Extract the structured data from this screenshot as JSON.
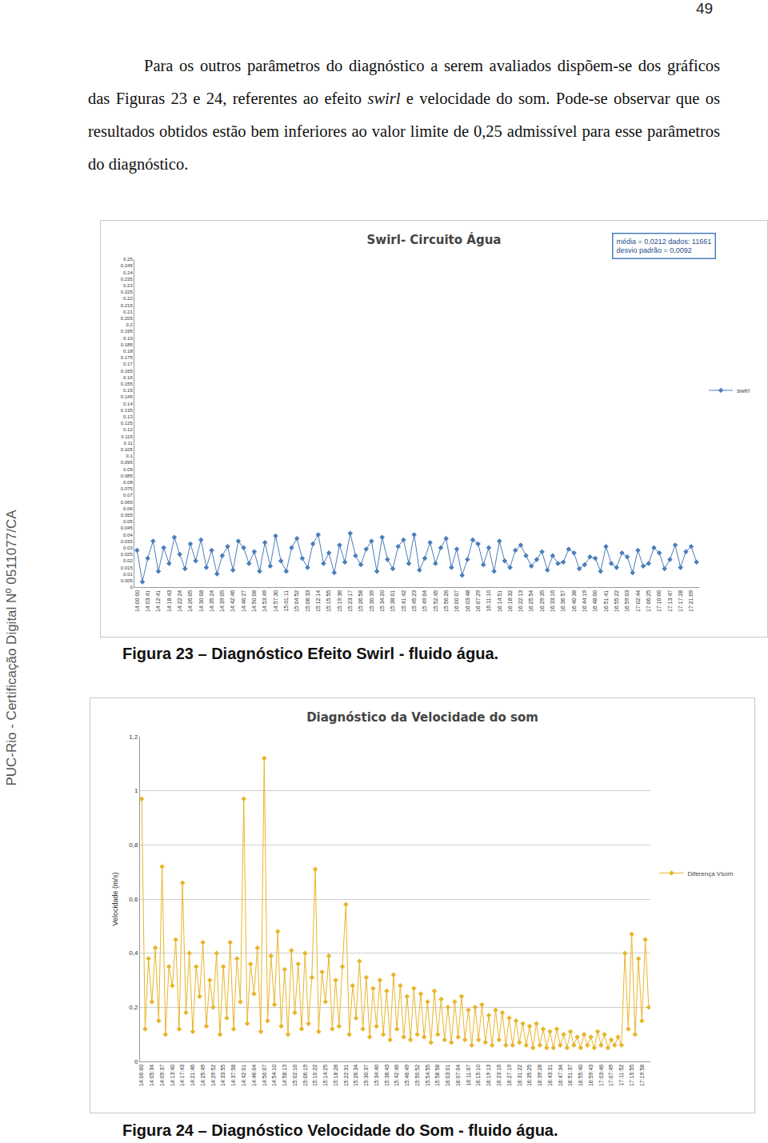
{
  "page_number": "49",
  "paragraph": [
    {
      "text": "Para os outros parâmetros do diagnóstico a serem avaliados dispõem-se dos gráficos das Figuras 23 e 24, referentes ao efeito "
    },
    {
      "text": "swirl",
      "style": "italic"
    },
    {
      "text": " e velocidade do som. Pode-se observar que os resultados obtidos estão bem inferiores ao valor limite de 0,25 admissível para esse parâmetros do diagnóstico."
    }
  ],
  "sidebar": "PUC-Rio - Certificação Digital Nº 0511077/CA",
  "chart_data": [
    {
      "type": "line",
      "title": "Swirl- Circuito Água",
      "caption": "Figura 23 – Diagnóstico Efeito Swirl - fluido água.",
      "annotations": [
        "média = 0,0212 dados: 11661",
        "desvio padrão = 0,0092"
      ],
      "legend": "right",
      "grid": false,
      "categories": [
        "14:00:00",
        null,
        "14:03:41",
        null,
        "14:12:41",
        null,
        "14:18:43",
        null,
        "14:22:24",
        null,
        "14:26:05",
        null,
        "14:30:08",
        null,
        "14:35:24",
        null,
        "14:39:05",
        null,
        "14:42:46",
        null,
        "14:46:27",
        null,
        "14:50:08",
        null,
        "14:53:49",
        null,
        "14:57:30",
        null,
        "15:01:11",
        null,
        "15:04:52",
        null,
        "15:08:33",
        null,
        "15:12:14",
        null,
        "15:15:55",
        null,
        "15:19:36",
        null,
        "15:23:17",
        null,
        "15:26:58",
        null,
        "15:30:39",
        null,
        "15:34:20",
        null,
        "15:38:01",
        null,
        "15:41:42",
        null,
        "15:45:23",
        null,
        "15:49:04",
        null,
        "15:52:45",
        null,
        "15:56:26",
        null,
        "16:00:07",
        null,
        "16:03:48",
        null,
        "16:07:29",
        null,
        "16:11:10",
        null,
        "16:14:51",
        null,
        "16:18:32",
        null,
        "16:22:13",
        null,
        "16:25:54",
        null,
        "16:29:35",
        null,
        "16:33:16",
        null,
        "16:36:57",
        null,
        "16:40:38",
        null,
        "16:44:19",
        null,
        "16:48:00",
        null,
        "16:51:41",
        null,
        "16:55:22",
        null,
        "16:59:03",
        null,
        "17:02:44",
        null,
        "17:06:25",
        null,
        "17:10:06",
        null,
        "17:13:47",
        null,
        "17:17:28",
        null,
        "17:21:09",
        null
      ],
      "series": [
        {
          "name": "swirl",
          "color": "#4a7ebb",
          "marker": "diamond",
          "values": [
            0.028,
            0.004,
            0.022,
            0.035,
            0.012,
            0.03,
            0.018,
            0.038,
            0.025,
            0.014,
            0.033,
            0.02,
            0.036,
            0.015,
            0.028,
            0.01,
            0.024,
            0.031,
            0.013,
            0.035,
            0.03,
            0.018,
            0.027,
            0.012,
            0.034,
            0.016,
            0.039,
            0.02,
            0.012,
            0.03,
            0.037,
            0.022,
            0.015,
            0.033,
            0.04,
            0.018,
            0.026,
            0.011,
            0.032,
            0.019,
            0.041,
            0.024,
            0.017,
            0.029,
            0.035,
            0.012,
            0.038,
            0.021,
            0.014,
            0.031,
            0.036,
            0.018,
            0.04,
            0.013,
            0.022,
            0.034,
            0.018,
            0.03,
            0.037,
            0.015,
            0.029,
            0.009,
            0.021,
            0.036,
            0.033,
            0.017,
            0.03,
            0.012,
            0.035,
            0.02,
            0.015,
            0.028,
            0.032,
            0.024,
            0.016,
            0.021,
            0.027,
            0.013,
            0.024,
            0.018,
            0.019,
            0.029,
            0.026,
            0.014,
            0.017,
            0.023,
            0.022,
            0.012,
            0.031,
            0.018,
            0.015,
            0.026,
            0.023,
            0.011,
            0.028,
            0.016,
            0.018,
            0.03,
            0.026,
            0.014,
            0.021,
            0.032,
            0.015,
            0.027,
            0.031,
            0.019
          ]
        }
      ],
      "ylim": [
        0,
        0.25
      ],
      "yticks": [
        0,
        0.005,
        0.01,
        0.015,
        0.02,
        0.025,
        0.03,
        0.035,
        0.04,
        0.045,
        0.05,
        0.055,
        0.06,
        0.065,
        0.07,
        0.075,
        0.08,
        0.085,
        0.09,
        0.095,
        0.1,
        0.105,
        0.11,
        0.115,
        0.12,
        0.125,
        0.13,
        0.135,
        0.14,
        0.145,
        0.15,
        0.155,
        0.16,
        0.165,
        0.17,
        0.175,
        0.18,
        0.185,
        0.19,
        0.195,
        0.2,
        0.205,
        0.21,
        0.215,
        0.22,
        0.225,
        0.23,
        0.235,
        0.24,
        0.245,
        0.25
      ]
    },
    {
      "type": "line",
      "title": "Diagnóstico da Velocidade do som",
      "caption": "Figura 24 – Diagnóstico Velocidade do Som - fluido água.",
      "y_label": "Velocidade (m/s)",
      "legend": "right",
      "grid": true,
      "categories": [
        "14:00:00",
        null,
        null,
        "14:05:34",
        null,
        null,
        "14:09:37",
        null,
        null,
        "14:13:40",
        null,
        null,
        "14:17:43",
        null,
        null,
        "14:21:46",
        null,
        null,
        "14:25:49",
        null,
        null,
        "14:29:52",
        null,
        null,
        "14:33:55",
        null,
        null,
        "14:37:58",
        null,
        null,
        "14:42:01",
        null,
        null,
        "14:46:04",
        null,
        null,
        "14:50:07",
        null,
        null,
        "14:54:10",
        null,
        null,
        "14:58:13",
        null,
        null,
        "15:02:16",
        null,
        null,
        "15:06:19",
        null,
        null,
        "15:10:22",
        null,
        null,
        "15:14:25",
        null,
        null,
        "15:18:28",
        null,
        null,
        "15:22:31",
        null,
        null,
        "15:26:34",
        null,
        null,
        "15:30:37",
        null,
        null,
        "15:34:40",
        null,
        null,
        "15:38:43",
        null,
        null,
        "15:42:46",
        null,
        null,
        "15:46:49",
        null,
        null,
        "15:50:52",
        null,
        null,
        "15:54:55",
        null,
        null,
        "15:58:58",
        null,
        null,
        "16:03:01",
        null,
        null,
        "16:07:04",
        null,
        null,
        "16:11:07",
        null,
        null,
        "16:15:10",
        null,
        null,
        "16:19:13",
        null,
        null,
        "16:23:16",
        null,
        null,
        "16:27:19",
        null,
        null,
        "16:31:22",
        null,
        null,
        "16:35:25",
        null,
        null,
        "16:39:28",
        null,
        null,
        "16:43:31",
        null,
        null,
        "16:47:34",
        null,
        null,
        "16:51:37",
        null,
        null,
        "16:55:40",
        null,
        null,
        "16:59:43",
        null,
        null,
        "17:03:46",
        null,
        null,
        "17:07:49",
        null,
        null,
        "17:11:52",
        null,
        null,
        "17:15:55",
        null,
        null,
        "17:19:58",
        null,
        null
      ],
      "series": [
        {
          "name": "Diferença Vsom",
          "color": "#e8b52a",
          "marker": "diamond",
          "values": [
            0.97,
            0.12,
            0.38,
            0.22,
            0.42,
            0.15,
            0.72,
            0.1,
            0.35,
            0.28,
            0.45,
            0.12,
            0.66,
            0.18,
            0.4,
            0.11,
            0.35,
            0.24,
            0.44,
            0.13,
            0.3,
            0.2,
            0.4,
            0.1,
            0.35,
            0.16,
            0.44,
            0.12,
            0.38,
            0.22,
            0.97,
            0.14,
            0.36,
            0.25,
            0.42,
            0.11,
            1.12,
            0.15,
            0.39,
            0.21,
            0.48,
            0.13,
            0.34,
            0.1,
            0.41,
            0.18,
            0.36,
            0.12,
            0.4,
            0.14,
            0.31,
            0.71,
            0.11,
            0.33,
            0.22,
            0.39,
            0.12,
            0.3,
            0.13,
            0.35,
            0.58,
            0.1,
            0.28,
            0.16,
            0.37,
            0.12,
            0.31,
            0.09,
            0.27,
            0.13,
            0.3,
            0.1,
            0.26,
            0.08,
            0.32,
            0.12,
            0.28,
            0.09,
            0.24,
            0.08,
            0.27,
            0.1,
            0.25,
            0.09,
            0.22,
            0.07,
            0.26,
            0.1,
            0.23,
            0.08,
            0.2,
            0.07,
            0.22,
            0.09,
            0.24,
            0.08,
            0.19,
            0.06,
            0.2,
            0.08,
            0.21,
            0.07,
            0.17,
            0.06,
            0.19,
            0.08,
            0.18,
            0.06,
            0.16,
            0.06,
            0.15,
            0.07,
            0.14,
            0.06,
            0.13,
            0.05,
            0.14,
            0.06,
            0.12,
            0.05,
            0.11,
            0.05,
            0.12,
            0.06,
            0.1,
            0.05,
            0.11,
            0.06,
            0.09,
            0.05,
            0.1,
            0.06,
            0.09,
            0.05,
            0.11,
            0.06,
            0.1,
            0.05,
            0.08,
            0.06,
            0.09,
            0.06,
            0.4,
            0.12,
            0.47,
            0.1,
            0.38,
            0.15,
            0.45,
            0.2
          ]
        }
      ],
      "ylim": [
        0,
        1.2
      ],
      "yticks": [
        0,
        {
          "value": 0.2,
          "label": "0,2"
        },
        {
          "value": 0.4,
          "label": "0,4"
        },
        {
          "value": 0.6,
          "label": "0,6"
        },
        {
          "value": 0.8,
          "label": "0,8"
        },
        1,
        {
          "value": 1.2,
          "label": "1,2"
        }
      ]
    }
  ]
}
